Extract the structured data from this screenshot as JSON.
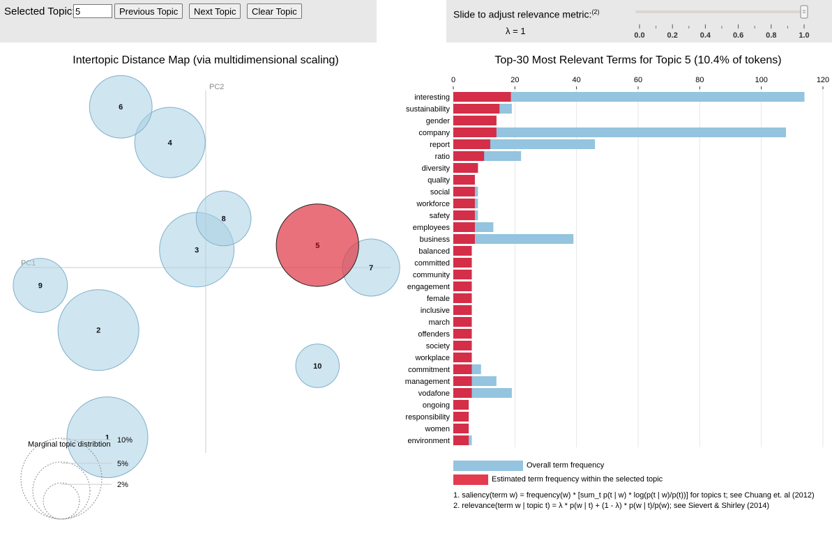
{
  "controls": {
    "selected_topic_label": "Selected Topic:",
    "selected_topic_value": "5",
    "prev_label": "Previous Topic",
    "next_label": "Next Topic",
    "clear_label": "Clear Topic",
    "slider_label": "Slide to adjust relevance metric:",
    "slider_footnote": "(2)",
    "lambda_text": "λ = 1",
    "lambda_value": 1.0,
    "slider_ticks": [
      "0.0",
      "0.2",
      "0.4",
      "0.6",
      "0.8",
      "1.0"
    ]
  },
  "colors": {
    "topic_circle": "#a8cfe3",
    "selected_circle": "#e0424f",
    "overall_bar": "#94c4df",
    "topic_bar": "#d42e48",
    "panel_bg": "#e8e8e8"
  },
  "chart_data": [
    {
      "type": "scatter",
      "title": "Intertopic Distance Map (via multidimensional scaling)",
      "xlabel": "PC1",
      "ylabel": "PC2",
      "selected": "5",
      "topics": [
        {
          "id": "1",
          "pc1": -0.22,
          "pc2": -0.38,
          "share": 10.0
        },
        {
          "id": "2",
          "pc1": -0.24,
          "pc2": -0.14,
          "share": 10.0
        },
        {
          "id": "3",
          "pc1": -0.02,
          "pc2": 0.04,
          "share": 8.5
        },
        {
          "id": "4",
          "pc1": -0.08,
          "pc2": 0.28,
          "share": 7.6
        },
        {
          "id": "5",
          "pc1": 0.25,
          "pc2": 0.05,
          "share": 10.4
        },
        {
          "id": "6",
          "pc1": -0.19,
          "pc2": 0.36,
          "share": 6.0
        },
        {
          "id": "7",
          "pc1": 0.37,
          "pc2": 0.0,
          "share": 5.0
        },
        {
          "id": "8",
          "pc1": 0.04,
          "pc2": 0.11,
          "share": 4.6
        },
        {
          "id": "9",
          "pc1": -0.37,
          "pc2": -0.04,
          "share": 4.5
        },
        {
          "id": "10",
          "pc1": 0.25,
          "pc2": -0.22,
          "share": 2.9
        }
      ],
      "legend_title": "Marginal topic distribtion",
      "legend_sizes": [
        {
          "label": "2%",
          "value": 2
        },
        {
          "label": "5%",
          "value": 5
        },
        {
          "label": "10%",
          "value": 10
        }
      ]
    },
    {
      "type": "bar",
      "title": "Top-30 Most Relevant Terms for Topic 5 (10.4% of tokens)",
      "xlim": [
        0,
        120
      ],
      "xticks": [
        "0",
        "20",
        "40",
        "60",
        "80",
        "100",
        "120"
      ],
      "categories": [
        "interesting",
        "sustainability",
        "gender",
        "company",
        "report",
        "ratio",
        "diversity",
        "quality",
        "social",
        "workforce",
        "safety",
        "employees",
        "business",
        "balanced",
        "committed",
        "community",
        "engagement",
        "female",
        "inclusive",
        "march",
        "offenders",
        "society",
        "workplace",
        "commitment",
        "management",
        "vodafone",
        "ongoing",
        "responsibility",
        "women",
        "environment"
      ],
      "series": [
        {
          "name": "Overall term frequency",
          "values": [
            114,
            19,
            14,
            108,
            46,
            22,
            8,
            7,
            8,
            8,
            8,
            13,
            39,
            6,
            6,
            6,
            6,
            6,
            6,
            6,
            6,
            6,
            6,
            9,
            14,
            19,
            5,
            5,
            5,
            6
          ]
        },
        {
          "name": "Estimated term frequency within the selected topic",
          "values": [
            18.7,
            15,
            14,
            14,
            12,
            10,
            8,
            7,
            7,
            7,
            7,
            7,
            7,
            6,
            6,
            6,
            6,
            6,
            6,
            6,
            6,
            6,
            6,
            6,
            6,
            6,
            5,
            5,
            5,
            5
          ]
        }
      ],
      "footnotes": [
        "1. saliency(term w) = frequency(w) * [sum_t p(t | w) * log(p(t | w)/p(t))] for topics t; see Chuang et. al (2012)",
        "2. relevance(term w | topic t) = λ * p(w | t) + (1 - λ) * p(w | t)/p(w); see Sievert & Shirley (2014)"
      ]
    }
  ]
}
